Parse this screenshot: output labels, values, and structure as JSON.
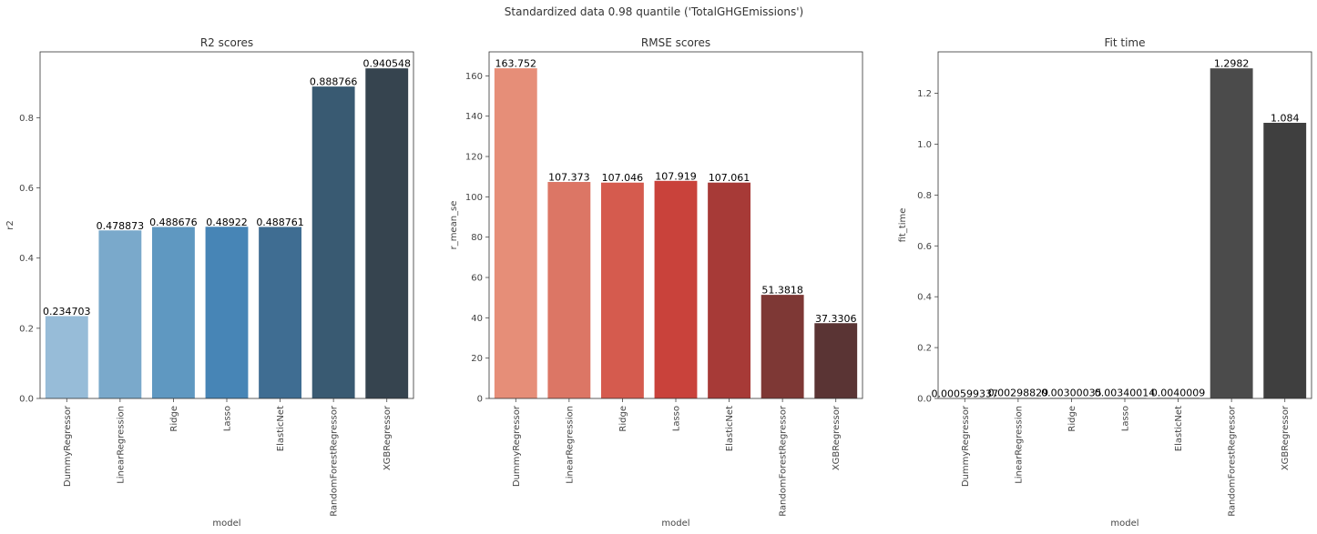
{
  "suptitle": "Standardized data 0.98 quantile ('TotalGHGEmissions')",
  "chart_data": [
    {
      "type": "bar",
      "title": "R2 scores",
      "xlabel": "model",
      "ylabel": "r2",
      "categories": [
        "DummyRegressor",
        "LinearRegression",
        "Ridge",
        "Lasso",
        "ElasticNet",
        "RandomForestRegressor",
        "XGBRegressor"
      ],
      "values": [
        0.234703,
        0.478873,
        0.488676,
        0.48922,
        0.488761,
        0.888766,
        0.940548
      ],
      "value_labels": [
        "0.234703",
        "0.478873",
        "0.488676",
        "0.48922",
        "0.488761",
        "0.888766",
        "0.940548"
      ],
      "ylim": [
        0,
        0.9876
      ],
      "yticks": [
        0.0,
        0.2,
        0.4,
        0.6,
        0.8
      ],
      "ytick_labels": [
        "0.0",
        "0.2",
        "0.4",
        "0.6",
        "0.8"
      ],
      "colors": [
        "#97bcd8",
        "#7aa9cb",
        "#5f98c1",
        "#4785b6",
        "#3f6d92",
        "#395a72",
        "#36444f"
      ],
      "grid": false,
      "legend": "none"
    },
    {
      "type": "bar",
      "title": "RMSE scores",
      "xlabel": "model",
      "ylabel": "r_mean_se",
      "categories": [
        "DummyRegressor",
        "LinearRegression",
        "Ridge",
        "Lasso",
        "ElasticNet",
        "RandomForestRegressor",
        "XGBRegressor"
      ],
      "values": [
        163.752,
        107.373,
        107.046,
        107.919,
        107.061,
        51.3818,
        37.3306
      ],
      "value_labels": [
        "163.752",
        "107.373",
        "107.046",
        "107.919",
        "107.061",
        "51.3818",
        "37.3306"
      ],
      "ylim": [
        0,
        171.9
      ],
      "yticks": [
        0,
        20,
        40,
        60,
        80,
        100,
        120,
        140,
        160
      ],
      "ytick_labels": [
        "0",
        "20",
        "40",
        "60",
        "80",
        "100",
        "120",
        "140",
        "160"
      ],
      "colors": [
        "#e68e78",
        "#dc7665",
        "#d55b4e",
        "#c9423b",
        "#a73a37",
        "#7e3835",
        "#5a3434"
      ],
      "grid": false,
      "legend": "none"
    },
    {
      "type": "bar",
      "title": "Fit time",
      "xlabel": "model",
      "ylabel": "fit_time",
      "categories": [
        "DummyRegressor",
        "LinearRegression",
        "Ridge",
        "Lasso",
        "ElasticNet",
        "RandomForestRegressor",
        "XGBRegressor"
      ],
      "values": [
        0.000599337,
        0.00298829,
        0.00300035,
        0.00340014,
        0.0040009,
        1.2982,
        1.084
      ],
      "value_labels": [
        "0.000599337",
        "0.00298829",
        "0.00300035",
        "0.00340014",
        "0.0040009",
        "1.2982",
        "1.084"
      ],
      "ylim": [
        0,
        1.3631
      ],
      "yticks": [
        0.0,
        0.2,
        0.4,
        0.6,
        0.8,
        1.0,
        1.2
      ],
      "ytick_labels": [
        "0.0",
        "0.2",
        "0.4",
        "0.6",
        "0.8",
        "1.0",
        "1.2"
      ],
      "colors": [
        "#c9c9c9",
        "#c9c9c9",
        "#c9c9c9",
        "#c9c9c9",
        "#c9c9c9",
        "#4b4b4b",
        "#3f3f3f"
      ],
      "grid": false,
      "legend": "none"
    }
  ]
}
